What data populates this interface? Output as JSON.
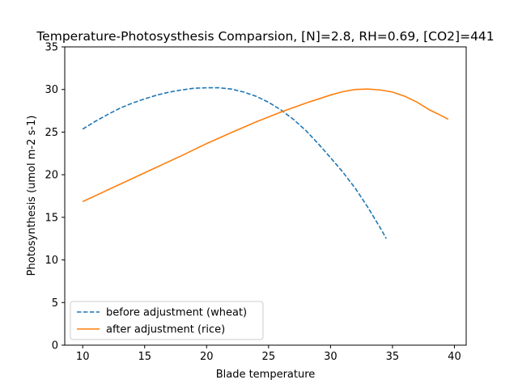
{
  "chart_data": {
    "type": "line",
    "title": "Temperature-Photosysthesis Comparsion, [N]=2.8, RH=0.69, [CO2]=441",
    "xlabel": "Blade temperature",
    "ylabel": "Photosynthesis (umol m-2 s-1)",
    "xlim": [
      8.55,
      40.95
    ],
    "ylim": [
      0,
      35
    ],
    "xticks": [
      10,
      15,
      20,
      25,
      30,
      35,
      40
    ],
    "yticks": [
      0,
      5,
      10,
      15,
      20,
      25,
      30,
      35
    ],
    "grid": false,
    "legend_position": "lower-left",
    "series": [
      {
        "name": "before adjustment (wheat)",
        "color": "#1f77b4",
        "dash": "dashed",
        "x": [
          10,
          11,
          12,
          13,
          14,
          15,
          16,
          17,
          18,
          19,
          20,
          21,
          22,
          23,
          24,
          25,
          26,
          27,
          28,
          29,
          30,
          31,
          32,
          33,
          34,
          34.5
        ],
        "y": [
          25.35,
          26.25,
          27.05,
          27.8,
          28.4,
          28.9,
          29.35,
          29.7,
          29.95,
          30.15,
          30.2,
          30.2,
          30.05,
          29.7,
          29.2,
          28.5,
          27.6,
          26.5,
          25.2,
          23.65,
          22.0,
          20.3,
          18.4,
          16.2,
          13.8,
          12.5
        ]
      },
      {
        "name": "after adjustment (rice)",
        "color": "#ff7f0e",
        "dash": "solid",
        "x": [
          10,
          12,
          14,
          16,
          18,
          20,
          22,
          24,
          26,
          28,
          30,
          31,
          32,
          33,
          34,
          35,
          36,
          37,
          38,
          39,
          39.5
        ],
        "y": [
          16.85,
          18.2,
          19.55,
          20.9,
          22.25,
          23.65,
          24.95,
          26.2,
          27.35,
          28.4,
          29.35,
          29.75,
          30.0,
          30.05,
          29.95,
          29.7,
          29.2,
          28.5,
          27.6,
          26.9,
          26.5
        ]
      }
    ]
  }
}
